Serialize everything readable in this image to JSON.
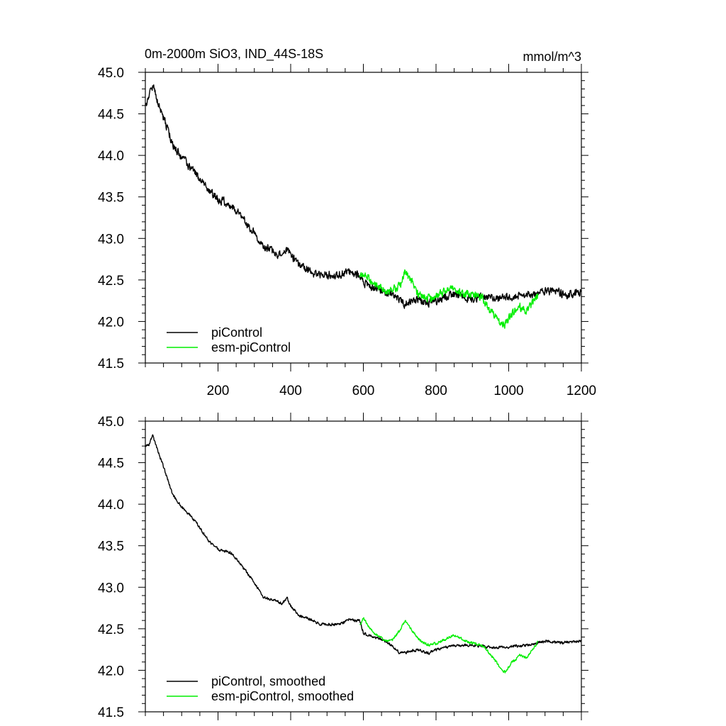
{
  "figure": {
    "title": "0m-2000m SiO3, IND_44S-18S",
    "units": "mmol/m^3"
  },
  "chart_data": [
    {
      "type": "line",
      "panel": "top",
      "title": "0m-2000m SiO3, IND_44S-18S",
      "units_label": "mmol/m^3",
      "xlim": [
        0,
        1200
      ],
      "ylim": [
        41.5,
        45.0
      ],
      "x_ticks": [
        200,
        400,
        600,
        800,
        1000,
        1200
      ],
      "x_tick_labels": [
        "200",
        "400",
        "600",
        "800",
        "1000",
        "1200"
      ],
      "y_ticks": [
        41.5,
        42.0,
        42.5,
        43.0,
        43.5,
        44.0,
        44.5,
        45.0
      ],
      "y_tick_labels": [
        "41.5",
        "42.0",
        "42.5",
        "43.0",
        "43.5",
        "44.0",
        "44.5",
        "45.0"
      ],
      "grid": false,
      "legend_position": "bottom-left",
      "series": [
        {
          "name": "piControl",
          "color": "#000000",
          "noise": 0.06,
          "x": [
            1,
            10,
            20,
            30,
            50,
            75,
            100,
            130,
            150,
            175,
            200,
            225,
            250,
            275,
            300,
            325,
            350,
            375,
            390,
            400,
            420,
            450,
            475,
            500,
            530,
            560,
            590,
            600,
            630,
            650,
            680,
            700,
            720,
            750,
            780,
            800,
            850,
            900,
            950,
            1000,
            1050,
            1100,
            1150,
            1200
          ],
          "values": [
            44.62,
            44.75,
            44.85,
            44.7,
            44.45,
            44.12,
            43.97,
            43.83,
            43.72,
            43.58,
            43.48,
            43.42,
            43.33,
            43.2,
            43.05,
            42.88,
            42.85,
            42.8,
            42.9,
            42.82,
            42.68,
            42.62,
            42.57,
            42.55,
            42.55,
            42.6,
            42.58,
            42.48,
            42.4,
            42.38,
            42.33,
            42.23,
            42.22,
            42.27,
            42.23,
            42.27,
            42.32,
            42.3,
            42.28,
            42.3,
            42.33,
            42.35,
            42.33,
            42.35
          ]
        },
        {
          "name": "esm-piControl",
          "color": "#00ee00",
          "noise": 0.06,
          "x": [
            590,
            600,
            615,
            630,
            650,
            675,
            700,
            715,
            730,
            750,
            775,
            800,
            850,
            900,
            925,
            950,
            975,
            990,
            1010,
            1030,
            1050,
            1075,
            1080
          ],
          "values": [
            42.55,
            42.58,
            42.53,
            42.45,
            42.38,
            42.35,
            42.45,
            42.6,
            42.52,
            42.35,
            42.3,
            42.32,
            42.4,
            42.33,
            42.3,
            42.12,
            42.0,
            41.97,
            42.1,
            42.15,
            42.13,
            42.28,
            42.3
          ]
        }
      ]
    },
    {
      "type": "line",
      "panel": "bottom",
      "xlim": [
        0,
        1200
      ],
      "ylim": [
        41.5,
        45.0
      ],
      "x_ticks": [
        200,
        400,
        600,
        800,
        1000,
        1200
      ],
      "y_ticks": [
        41.5,
        42.0,
        42.5,
        43.0,
        43.5,
        44.0,
        44.5,
        45.0
      ],
      "y_tick_labels": [
        "41.5",
        "42.0",
        "42.5",
        "43.0",
        "43.5",
        "44.0",
        "44.5",
        "45.0"
      ],
      "grid": false,
      "legend_position": "bottom-left",
      "series": [
        {
          "name": "piControl, smoothed",
          "color": "#000000",
          "noise": 0.02,
          "x": [
            1,
            10,
            20,
            30,
            50,
            75,
            100,
            130,
            150,
            175,
            200,
            225,
            250,
            275,
            300,
            325,
            350,
            375,
            390,
            400,
            420,
            450,
            475,
            500,
            530,
            560,
            590,
            600,
            630,
            650,
            680,
            700,
            720,
            750,
            780,
            800,
            850,
            900,
            950,
            1000,
            1050,
            1100,
            1150,
            1200
          ],
          "values": [
            44.7,
            44.72,
            44.82,
            44.7,
            44.45,
            44.12,
            43.97,
            43.83,
            43.72,
            43.55,
            43.46,
            43.43,
            43.35,
            43.2,
            43.05,
            42.88,
            42.85,
            42.8,
            42.88,
            42.78,
            42.67,
            42.62,
            42.57,
            42.55,
            42.55,
            42.6,
            42.6,
            42.45,
            42.4,
            42.37,
            42.3,
            42.21,
            42.22,
            42.25,
            42.21,
            42.25,
            42.3,
            42.3,
            42.27,
            42.28,
            42.3,
            42.35,
            42.33,
            42.35
          ]
        },
        {
          "name": "esm-piControl, smoothed",
          "color": "#00ee00",
          "noise": 0.02,
          "x": [
            590,
            600,
            615,
            630,
            650,
            675,
            700,
            715,
            730,
            750,
            775,
            800,
            850,
            900,
            925,
            950,
            975,
            990,
            1010,
            1030,
            1050,
            1075,
            1080
          ],
          "values": [
            42.55,
            42.63,
            42.52,
            42.45,
            42.38,
            42.35,
            42.48,
            42.6,
            42.5,
            42.38,
            42.3,
            42.33,
            42.42,
            42.33,
            42.3,
            42.2,
            42.05,
            41.98,
            42.1,
            42.18,
            42.15,
            42.3,
            42.35
          ]
        }
      ]
    }
  ]
}
